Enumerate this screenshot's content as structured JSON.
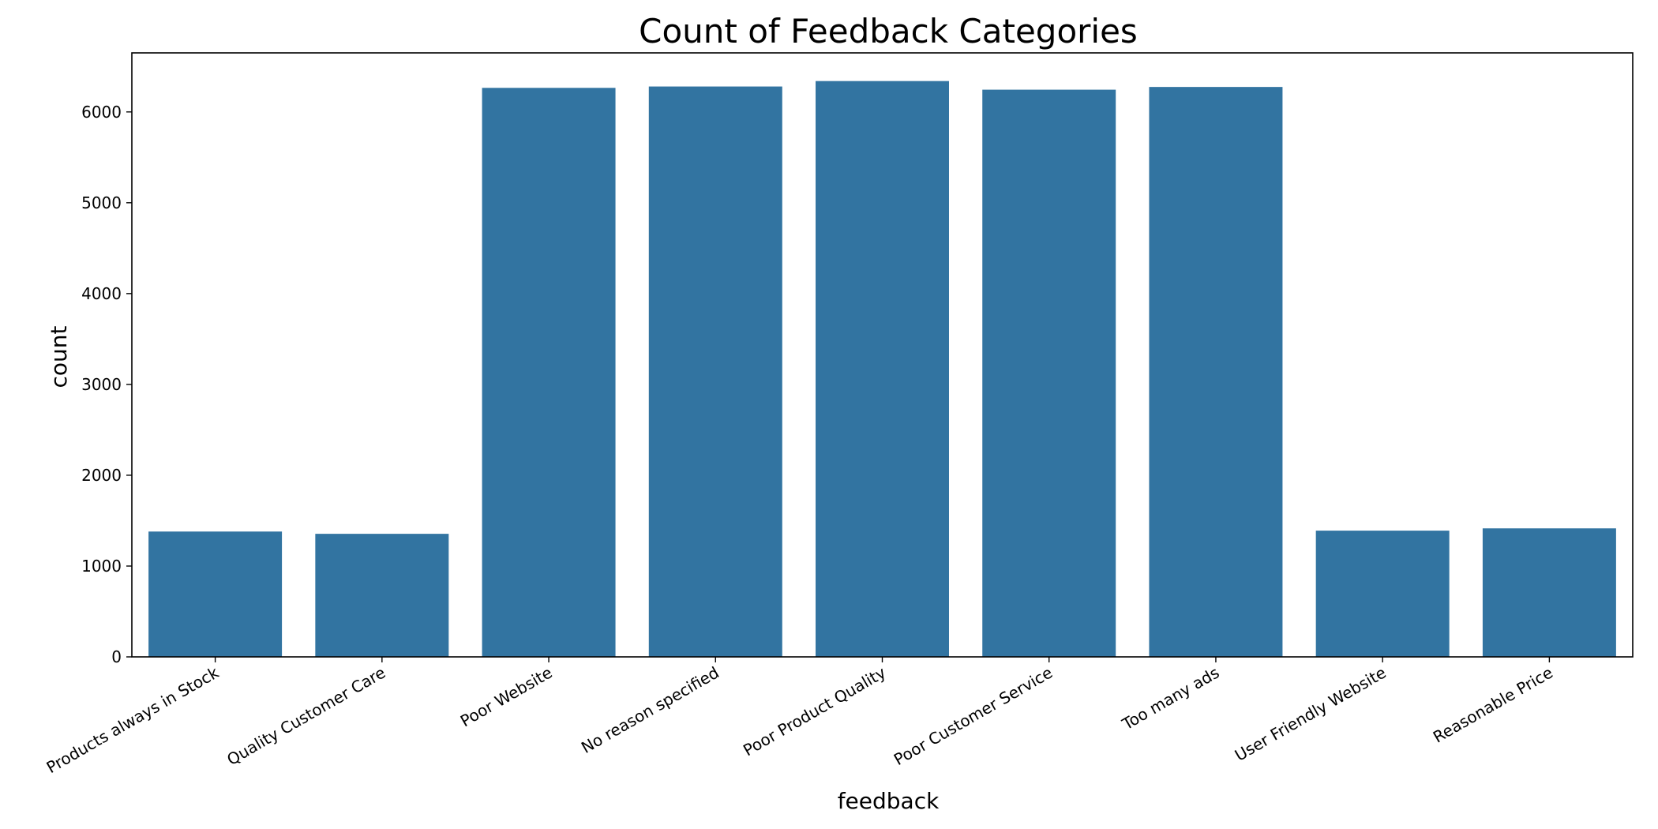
{
  "chart_data": {
    "type": "bar",
    "title": "Count of Feedback Categories",
    "xlabel": "feedback",
    "ylabel": "count",
    "categories": [
      "Products always in Stock",
      "Quality Customer Care",
      "Poor Website",
      "No reason specified",
      "Poor Product Quality",
      "Poor Customer Service",
      "Too many ads",
      "User Friendly Website",
      "Reasonable Price"
    ],
    "values": [
      1380,
      1355,
      6265,
      6280,
      6340,
      6245,
      6275,
      1390,
      1415
    ],
    "ylim": [
      0,
      6650
    ],
    "yticks": [
      0,
      1000,
      2000,
      3000,
      4000,
      5000,
      6000
    ],
    "bar_color": "#3274a1",
    "grid": false,
    "legend": "none"
  }
}
